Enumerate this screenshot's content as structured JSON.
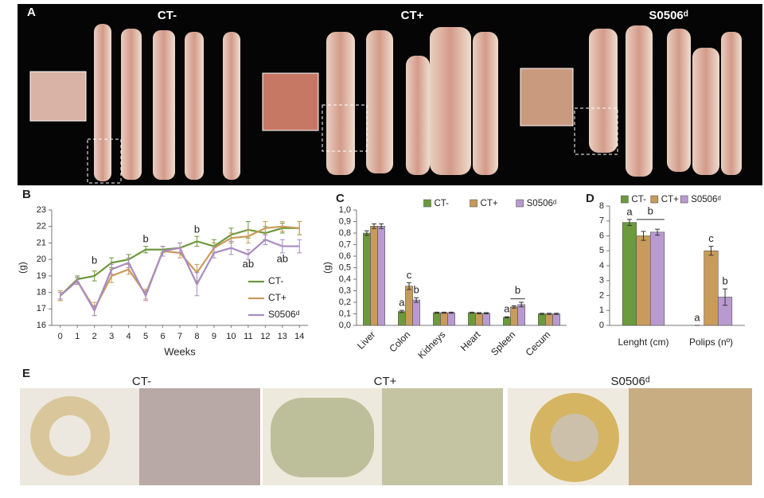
{
  "panels": {
    "a": {
      "letter": "A",
      "groups": [
        "CT-",
        "CT+",
        "S0506ᵈ"
      ]
    },
    "b": {
      "letter": "B"
    },
    "c": {
      "letter": "C"
    },
    "d": {
      "letter": "D"
    },
    "e": {
      "letter": "E",
      "groups": [
        "CT-",
        "CT+",
        "S0506ᵈ"
      ]
    }
  },
  "chart_data": [
    {
      "type": "line",
      "xlabel": "Weeks",
      "ylabel": "(g)",
      "x": [
        0,
        1,
        2,
        3,
        4,
        5,
        6,
        7,
        8,
        9,
        10,
        11,
        12,
        13,
        14
      ],
      "xlim": [
        -0.5,
        14.5
      ],
      "xticks": [
        0,
        1,
        2,
        3,
        4,
        5,
        6,
        7,
        8,
        9,
        10,
        11,
        12,
        13,
        14
      ],
      "ylim": [
        16,
        23
      ],
      "yticks": [
        16,
        17,
        18,
        19,
        20,
        21,
        22,
        23
      ],
      "grid": false,
      "legend": "lower right",
      "series": [
        {
          "name": "CT-",
          "color": "#6b9a3c",
          "values": [
            17.8,
            18.8,
            19.0,
            19.8,
            20.0,
            20.6,
            20.6,
            20.7,
            21.1,
            20.8,
            21.5,
            21.8,
            21.6,
            21.9,
            21.9
          ],
          "errors": [
            0.3,
            0.2,
            0.3,
            0.3,
            0.3,
            0.2,
            0.2,
            0.3,
            0.3,
            0.4,
            0.4,
            0.5,
            0.4,
            0.3,
            0.4
          ]
        },
        {
          "name": "CT+",
          "color": "#c89b5a",
          "values": [
            17.8,
            18.7,
            17.0,
            19.0,
            19.4,
            17.9,
            20.5,
            20.4,
            19.2,
            20.7,
            21.3,
            21.4,
            21.9,
            22.0,
            21.9
          ],
          "errors": [
            0.3,
            0.2,
            0.4,
            0.4,
            0.3,
            0.3,
            0.3,
            0.3,
            0.5,
            0.3,
            0.3,
            0.4,
            0.4,
            0.3,
            0.4
          ]
        },
        {
          "name": "S0506ᵈ",
          "color": "#a98bc0",
          "values": [
            17.8,
            18.7,
            16.9,
            19.4,
            19.8,
            17.8,
            20.5,
            20.7,
            18.5,
            20.4,
            20.7,
            20.3,
            21.2,
            20.8,
            20.8
          ],
          "errors": [
            0.2,
            0.2,
            0.3,
            0.3,
            0.3,
            0.3,
            0.3,
            0.3,
            0.7,
            0.3,
            0.4,
            0.3,
            0.3,
            0.4,
            0.4
          ]
        }
      ],
      "annotations": [
        {
          "text": "b",
          "x": 2,
          "y": 19.9
        },
        {
          "text": "b",
          "x": 5,
          "y": 21.2
        },
        {
          "text": "b",
          "x": 8,
          "y": 21.8
        },
        {
          "text": "ab",
          "x": 11,
          "y": 19.7
        },
        {
          "text": "ab",
          "x": 13,
          "y": 20.0
        }
      ]
    },
    {
      "type": "bar",
      "ylabel": "(g)",
      "categories": [
        "Liver",
        "Colon",
        "Kidneys",
        "Heart",
        "Spleen",
        "Cecum"
      ],
      "ylim": [
        0,
        1
      ],
      "yticks": [
        {
          "value": 0,
          "label": "0,0"
        },
        {
          "value": 0.1,
          "label": "0,1"
        },
        {
          "value": 0.2,
          "label": "0,2"
        },
        {
          "value": 0.3,
          "label": "0,3"
        },
        {
          "value": 0.4,
          "label": "0,4"
        },
        {
          "value": 0.5,
          "label": "0,5"
        },
        {
          "value": 0.6,
          "label": "0,6"
        },
        {
          "value": 0.7,
          "label": "0,7"
        },
        {
          "value": 0.8,
          "label": "0,8"
        },
        {
          "value": 0.9,
          "label": "0,9"
        },
        {
          "value": 1,
          "label": "1,0"
        }
      ],
      "legend": "top",
      "rotate_labels": true,
      "series": [
        {
          "name": "CT-",
          "color": "#6b9a3c",
          "values": [
            0.8,
            0.12,
            0.11,
            0.11,
            0.07,
            0.1
          ],
          "errors": [
            0.02,
            0.01,
            0.005,
            0.005,
            0.005,
            0.005
          ],
          "labels": [
            null,
            "a",
            null,
            null,
            "a",
            null
          ]
        },
        {
          "name": "CT+",
          "color": "#c89b5a",
          "values": [
            0.86,
            0.34,
            0.11,
            0.105,
            0.16,
            0.1
          ],
          "errors": [
            0.02,
            0.03,
            0.005,
            0.005,
            0.01,
            0.005
          ],
          "labels": [
            null,
            "c",
            null,
            null,
            null,
            null
          ]
        },
        {
          "name": "S0506ᵈ",
          "color": "#b89ad0",
          "values": [
            0.86,
            0.22,
            0.11,
            0.105,
            0.18,
            0.1
          ],
          "errors": [
            0.02,
            0.02,
            0.005,
            0.005,
            0.02,
            0.005
          ],
          "labels": [
            null,
            "b",
            null,
            null,
            null,
            null
          ]
        }
      ],
      "brackets": [
        {
          "text": "b",
          "category": "Spleen",
          "series": [
            "CT+",
            "S0506ᵈ"
          ],
          "y": 0.23
        }
      ]
    },
    {
      "type": "bar",
      "categories": [
        "Lenght (cm)",
        "Polips (nº)"
      ],
      "ylim": [
        0,
        8
      ],
      "yticks": [
        0,
        1,
        2,
        3,
        4,
        5,
        6,
        7,
        8
      ],
      "legend": "top",
      "rotate_labels": false,
      "series": [
        {
          "name": "CT-",
          "color": "#6b9a3c",
          "values": [
            6.9,
            0
          ],
          "errors": [
            0.2,
            0
          ],
          "labels": [
            "a",
            "a"
          ]
        },
        {
          "name": "CT+",
          "color": "#c89b5a",
          "values": [
            6.0,
            5.0
          ],
          "errors": [
            0.3,
            0.3
          ],
          "labels": [
            null,
            "c"
          ]
        },
        {
          "name": "S0506ᵈ",
          "color": "#b89ad0",
          "values": [
            6.25,
            1.9
          ],
          "errors": [
            0.2,
            0.55
          ],
          "labels": [
            null,
            "b"
          ]
        }
      ],
      "brackets": [
        {
          "text": "b",
          "category": "Lenght (cm)",
          "series": [
            "CT+",
            "S0506ᵈ"
          ],
          "y": 7.1
        }
      ]
    }
  ]
}
